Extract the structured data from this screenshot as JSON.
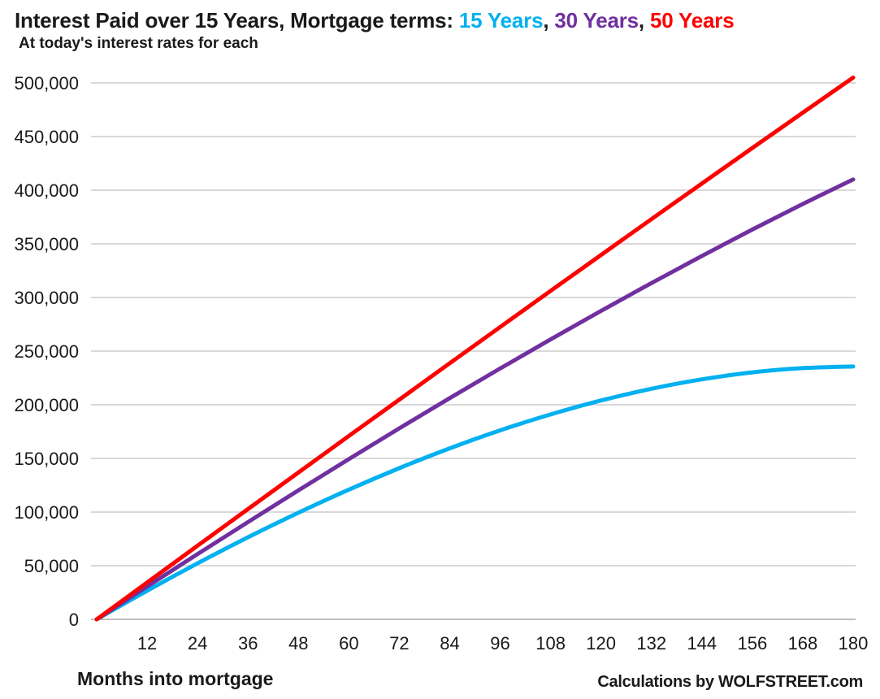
{
  "header": {
    "title_prefix": "Interest Paid over 15 Years, Mortgage terms: ",
    "separator": ", ",
    "terms": [
      {
        "label": "15 Years",
        "color": "#00B0F0"
      },
      {
        "label": "30 Years",
        "color": "#7030A0"
      },
      {
        "label": "50 Years",
        "color": "#FF0000"
      }
    ],
    "subtitle": "At today's interest rates for each"
  },
  "footer": {
    "x_axis_title": "Months into mortgage",
    "credit": "Calculations by WOLFSTREET.com"
  },
  "colors": {
    "blue": "#00B0F0",
    "purple": "#7030A0",
    "red": "#FF0000",
    "gridline": "#D9D9D9",
    "axis_line": "#BFBFBF",
    "text": "#1A1A1A"
  },
  "chart_data": {
    "type": "line",
    "title": "Interest Paid over 15 Years, Mortgage terms: 15 Years, 30 Years, 50 Years",
    "subtitle": "At today's interest rates for each",
    "xlabel": "Months into mortgage",
    "ylabel": "",
    "legend_position": "in-title",
    "grid": "horizontal",
    "xlim": [
      0,
      180
    ],
    "ylim": [
      0,
      500000
    ],
    "xticks": [
      12,
      24,
      36,
      48,
      60,
      72,
      84,
      96,
      108,
      120,
      132,
      144,
      156,
      168,
      180
    ],
    "yticks": [
      0,
      50000,
      100000,
      150000,
      200000,
      250000,
      300000,
      350000,
      400000,
      450000,
      500000
    ],
    "ytick_labels": [
      "0",
      "50,000",
      "100,000",
      "150,000",
      "200,000",
      "250,000",
      "300,000",
      "350,000",
      "400,000",
      "450,000",
      "500,000"
    ],
    "x": [
      0,
      12,
      24,
      36,
      48,
      60,
      72,
      84,
      96,
      108,
      120,
      132,
      144,
      156,
      168,
      180
    ],
    "series": [
      {
        "name": "15 Years",
        "color": "#00B0F0",
        "values": [
          0,
          26700,
          52200,
          76500,
          99400,
          120900,
          140900,
          159400,
          176100,
          191000,
          204000,
          214900,
          223700,
          230200,
          234200,
          235700
        ]
      },
      {
        "name": "30 Years",
        "color": "#7030A0",
        "values": [
          0,
          30600,
          60800,
          90700,
          120200,
          149300,
          178000,
          206200,
          233800,
          260900,
          287500,
          313400,
          338700,
          363300,
          387100,
          410000
        ]
      },
      {
        "name": "50 Years",
        "color": "#FF0000",
        "values": [
          0,
          34300,
          68600,
          102800,
          136900,
          170900,
          204800,
          238700,
          272400,
          306100,
          339600,
          373000,
          406200,
          439300,
          472200,
          505000
        ]
      }
    ]
  }
}
